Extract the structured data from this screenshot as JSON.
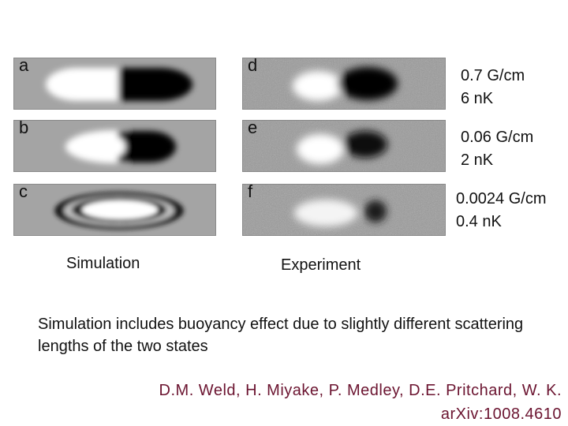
{
  "simulation": {
    "caption": "Simulation",
    "panels": [
      {
        "label": "a"
      },
      {
        "label": "b"
      },
      {
        "label": "c"
      }
    ]
  },
  "experiment": {
    "caption": "Experiment",
    "panels": [
      {
        "label": "d",
        "gradient": "0.7 G/cm",
        "temperature": "6 nK"
      },
      {
        "label": "e",
        "gradient": "0.06 G/cm",
        "temperature": "2 nK"
      },
      {
        "label": "f",
        "gradient": "0.0024 G/cm",
        "temperature": "0.4 nK"
      }
    ]
  },
  "note": "Simulation includes buoyancy effect due to slightly different scattering lengths of the two states",
  "credit": {
    "authors": "D.M. Weld, H. Miyake, P. Medley, D.E. Pritchard, W. K.",
    "reference": "arXiv:1008.4610"
  }
}
